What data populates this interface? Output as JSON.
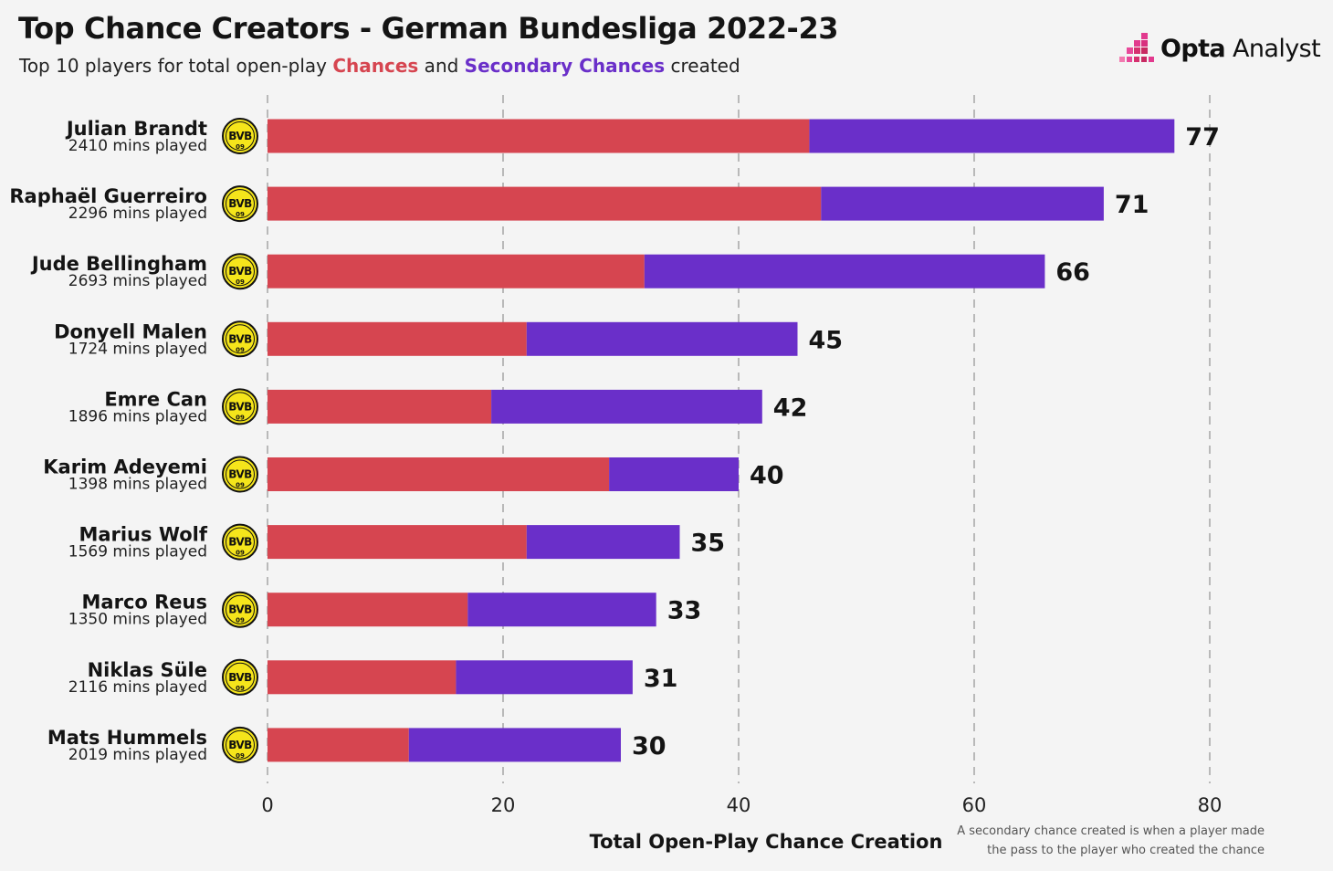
{
  "header": {
    "title": "Top Chance Creators - German Bundesliga 2022-23",
    "subtitle_prefix": "Top 10 players for total open-play ",
    "subtitle_chances": "Chances",
    "subtitle_middle": " and ",
    "subtitle_secondary": "Secondary Chances",
    "subtitle_suffix": " created"
  },
  "brand": {
    "name_bold": "Opta",
    "name_regular": " Analyst"
  },
  "footnote": "A secondary chance created is when a player made the pass to the player who created the chance",
  "club_badge": {
    "text_top": "BVB",
    "text_bottom": "09",
    "icon": "bvb-badge-icon"
  },
  "colors": {
    "chances": "#d64550",
    "secondary_chances": "#6a2fc9",
    "badge_fill": "#f5e51b",
    "badge_text": "#111111"
  },
  "chart_data": {
    "type": "bar",
    "orientation": "horizontal",
    "stacked": true,
    "xlabel": "Total Open-Play Chance Creation",
    "xlim": [
      0,
      80
    ],
    "xticks": [
      0,
      20,
      40,
      60,
      80
    ],
    "grid": "vertical dashed",
    "categories": [
      "Julian Brandt",
      "Raphaël Guerreiro",
      "Jude Bellingham",
      "Donyell Malen",
      "Emre Can",
      "Karim Adeyemi",
      "Marius Wolf",
      "Marco Reus",
      "Niklas Süle",
      "Mats Hummels"
    ],
    "minutes_labels": [
      "2410 mins played",
      "2296 mins played",
      "2693 mins played",
      "1724 mins played",
      "1896 mins played",
      "1398 mins played",
      "1569 mins played",
      "1350 mins played",
      "2116 mins played",
      "2019 mins played"
    ],
    "series": [
      {
        "name": "Chances",
        "values": [
          46,
          47,
          32,
          22,
          19,
          29,
          22,
          17,
          16,
          12
        ]
      },
      {
        "name": "Secondary Chances",
        "values": [
          31,
          24,
          34,
          23,
          23,
          11,
          13,
          16,
          15,
          18
        ]
      }
    ],
    "totals": [
      77,
      71,
      66,
      45,
      42,
      40,
      35,
      33,
      31,
      30
    ]
  }
}
